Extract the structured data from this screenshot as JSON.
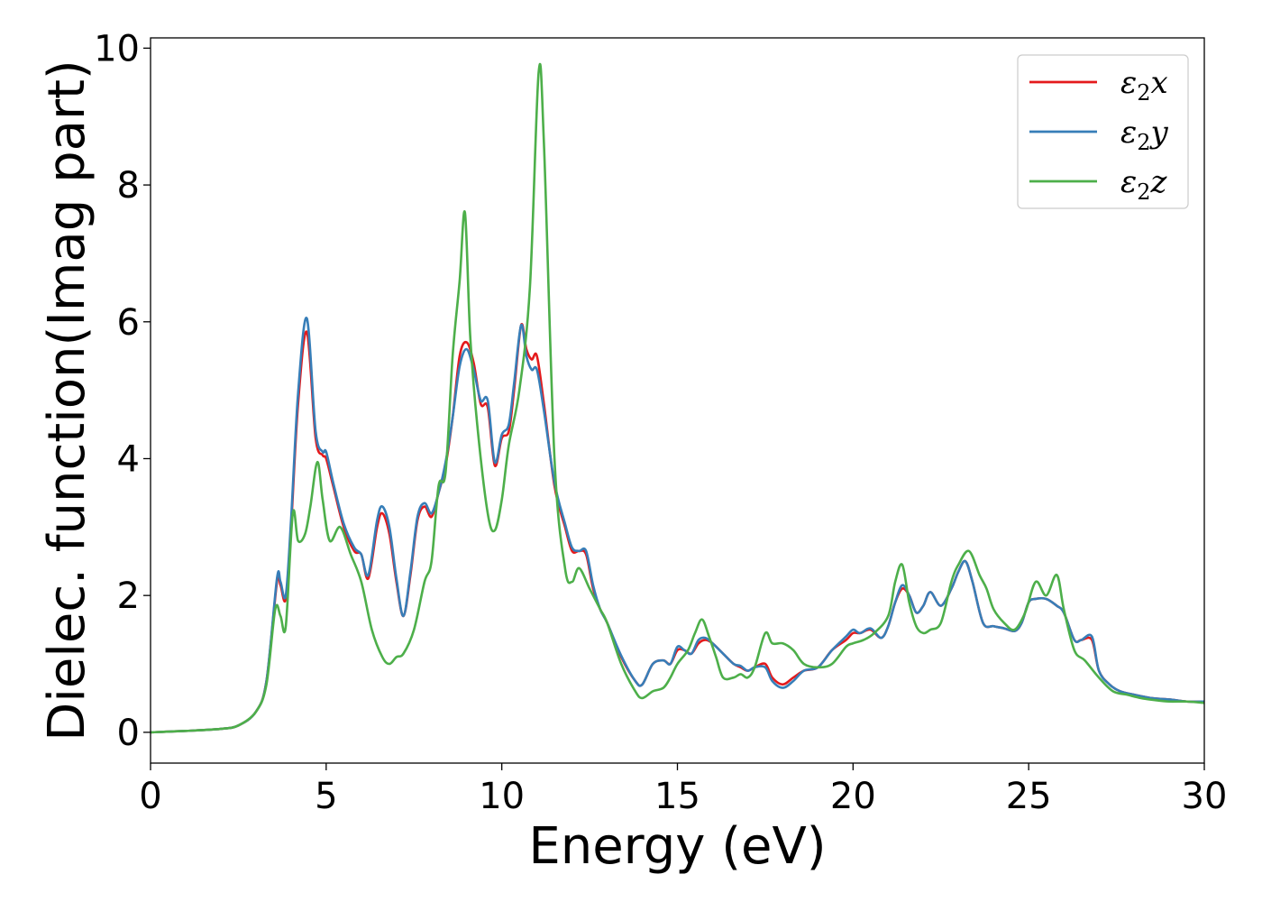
{
  "chart_data": {
    "type": "line",
    "title": "",
    "xlabel": "Energy (eV)",
    "ylabel": "Dielec. function(Imag part)",
    "xlim": [
      0,
      30
    ],
    "ylim": [
      -0.45,
      10.15
    ],
    "xticks": [
      "0",
      "5",
      "10",
      "15",
      "20",
      "25",
      "30"
    ],
    "yticks": [
      "0",
      "2",
      "4",
      "6",
      "8",
      "10"
    ],
    "xtick_values": [
      0,
      5,
      10,
      15,
      20,
      25,
      30
    ],
    "ytick_values": [
      0,
      2,
      4,
      6,
      8,
      10
    ],
    "grid": false,
    "legend_position": "top-right",
    "series": [
      {
        "name": "ε2x",
        "legend_base": "ε",
        "legend_sub": "2",
        "legend_suffix": "x",
        "color": "#e41a1c",
        "x": [
          0,
          1,
          2,
          2.5,
          3,
          3.3,
          3.6,
          3.7,
          3.85,
          4.0,
          4.2,
          4.45,
          4.7,
          4.9,
          5.0,
          5.2,
          5.5,
          5.8,
          6.0,
          6.2,
          6.45,
          6.6,
          6.8,
          7.0,
          7.2,
          7.4,
          7.6,
          7.8,
          8.0,
          8.2,
          8.4,
          8.6,
          8.8,
          9.0,
          9.2,
          9.4,
          9.6,
          9.8,
          10.0,
          10.2,
          10.35,
          10.55,
          10.7,
          10.85,
          11.0,
          11.2,
          11.5,
          11.8,
          12.0,
          12.2,
          12.4,
          12.6,
          12.8,
          13.0,
          13.4,
          13.8,
          14.0,
          14.3,
          14.6,
          14.8,
          15.0,
          15.2,
          15.4,
          15.6,
          15.8,
          16.0,
          16.3,
          16.6,
          16.8,
          17.0,
          17.2,
          17.5,
          17.7,
          18.0,
          18.3,
          18.6,
          19.0,
          19.4,
          19.8,
          20.0,
          20.2,
          20.5,
          20.8,
          21.0,
          21.2,
          21.4,
          21.6,
          21.8,
          22.0,
          22.2,
          22.5,
          22.8,
          23.0,
          23.2,
          23.4,
          23.7,
          24.0,
          24.3,
          24.6,
          24.8,
          25.0,
          25.2,
          25.5,
          25.8,
          26.0,
          26.3,
          26.5,
          26.8,
          27.0,
          27.3,
          27.6,
          28.0,
          28.5,
          29.0,
          29.5,
          30.0
        ],
        "values": [
          0.0,
          0.02,
          0.05,
          0.1,
          0.3,
          0.75,
          2.2,
          2.15,
          1.95,
          3.0,
          4.8,
          5.85,
          4.3,
          4.05,
          4.0,
          3.6,
          3.0,
          2.65,
          2.6,
          2.25,
          3.0,
          3.2,
          2.9,
          2.2,
          1.7,
          2.3,
          3.1,
          3.3,
          3.15,
          3.5,
          3.9,
          4.6,
          5.5,
          5.7,
          5.4,
          4.8,
          4.75,
          3.9,
          4.3,
          4.4,
          5.0,
          5.95,
          5.6,
          5.45,
          5.5,
          4.8,
          3.6,
          3.0,
          2.65,
          2.65,
          2.6,
          2.1,
          1.8,
          1.6,
          1.1,
          0.75,
          0.7,
          1.0,
          1.05,
          1.0,
          1.2,
          1.2,
          1.15,
          1.3,
          1.35,
          1.3,
          1.15,
          1.0,
          0.95,
          0.9,
          0.95,
          1.0,
          0.8,
          0.7,
          0.8,
          0.9,
          0.95,
          1.2,
          1.35,
          1.45,
          1.45,
          1.5,
          1.38,
          1.55,
          1.9,
          2.1,
          2.0,
          1.75,
          1.85,
          2.05,
          1.85,
          2.1,
          2.35,
          2.5,
          2.2,
          1.6,
          1.55,
          1.52,
          1.48,
          1.6,
          1.9,
          1.95,
          1.95,
          1.85,
          1.75,
          1.35,
          1.35,
          1.35,
          0.9,
          0.7,
          0.6,
          0.55,
          0.5,
          0.48,
          0.45,
          0.45
        ]
      },
      {
        "name": "ε2y",
        "legend_base": "ε",
        "legend_sub": "2",
        "legend_suffix": "y",
        "color": "#377eb8",
        "x": [
          0,
          1,
          2,
          2.5,
          3,
          3.3,
          3.6,
          3.7,
          3.85,
          4.0,
          4.2,
          4.45,
          4.7,
          4.9,
          5.0,
          5.2,
          5.5,
          5.8,
          6.0,
          6.2,
          6.45,
          6.6,
          6.8,
          7.0,
          7.2,
          7.4,
          7.6,
          7.8,
          8.0,
          8.2,
          8.4,
          8.6,
          8.8,
          9.0,
          9.2,
          9.4,
          9.6,
          9.8,
          10.0,
          10.2,
          10.35,
          10.55,
          10.7,
          10.85,
          11.0,
          11.2,
          11.5,
          11.8,
          12.0,
          12.2,
          12.4,
          12.6,
          12.8,
          13.0,
          13.4,
          13.8,
          14.0,
          14.3,
          14.6,
          14.8,
          15.0,
          15.2,
          15.4,
          15.6,
          15.8,
          16.0,
          16.3,
          16.6,
          16.8,
          17.0,
          17.2,
          17.5,
          17.7,
          18.0,
          18.3,
          18.6,
          19.0,
          19.4,
          19.8,
          20.0,
          20.2,
          20.5,
          20.8,
          21.0,
          21.2,
          21.4,
          21.6,
          21.8,
          22.0,
          22.2,
          22.5,
          22.8,
          23.0,
          23.2,
          23.4,
          23.7,
          24.0,
          24.3,
          24.6,
          24.8,
          25.0,
          25.2,
          25.5,
          25.8,
          26.0,
          26.3,
          26.5,
          26.8,
          27.0,
          27.3,
          27.6,
          28.0,
          28.5,
          29.0,
          29.5,
          30.0
        ],
        "values": [
          0.0,
          0.02,
          0.05,
          0.1,
          0.3,
          0.75,
          2.25,
          2.2,
          2.0,
          3.1,
          4.95,
          6.05,
          4.4,
          4.1,
          4.1,
          3.65,
          3.05,
          2.7,
          2.6,
          2.3,
          3.1,
          3.3,
          3.0,
          2.25,
          1.7,
          2.35,
          3.15,
          3.35,
          3.2,
          3.5,
          3.95,
          4.6,
          5.35,
          5.6,
          5.3,
          4.85,
          4.85,
          3.95,
          4.35,
          4.5,
          5.1,
          5.95,
          5.5,
          5.3,
          5.3,
          4.7,
          3.65,
          3.05,
          2.7,
          2.65,
          2.65,
          2.15,
          1.8,
          1.6,
          1.12,
          0.75,
          0.7,
          1.0,
          1.05,
          1.0,
          1.25,
          1.2,
          1.15,
          1.35,
          1.38,
          1.3,
          1.15,
          1.0,
          0.97,
          0.9,
          0.95,
          0.95,
          0.75,
          0.65,
          0.75,
          0.9,
          0.95,
          1.2,
          1.4,
          1.5,
          1.45,
          1.52,
          1.38,
          1.55,
          1.9,
          2.15,
          2.0,
          1.75,
          1.85,
          2.05,
          1.85,
          2.1,
          2.35,
          2.5,
          2.2,
          1.6,
          1.55,
          1.52,
          1.48,
          1.6,
          1.9,
          1.95,
          1.95,
          1.85,
          1.75,
          1.35,
          1.35,
          1.4,
          0.9,
          0.7,
          0.6,
          0.55,
          0.5,
          0.48,
          0.45,
          0.45
        ]
      },
      {
        "name": "ε2z",
        "legend_base": "ε",
        "legend_sub": "2",
        "legend_suffix": "z",
        "color": "#4daf4a",
        "x": [
          0,
          1,
          2,
          2.5,
          3,
          3.3,
          3.55,
          3.7,
          3.85,
          4.05,
          4.2,
          4.4,
          4.55,
          4.75,
          4.9,
          5.1,
          5.4,
          5.7,
          6.0,
          6.3,
          6.6,
          6.8,
          7.0,
          7.2,
          7.5,
          7.8,
          8.0,
          8.2,
          8.4,
          8.6,
          8.8,
          8.95,
          9.1,
          9.3,
          9.6,
          9.8,
          10.0,
          10.2,
          10.5,
          10.8,
          11.05,
          11.2,
          11.5,
          11.8,
          12.0,
          12.2,
          12.5,
          12.8,
          13.0,
          13.4,
          13.8,
          14.0,
          14.3,
          14.6,
          14.8,
          15.0,
          15.3,
          15.5,
          15.7,
          15.9,
          16.1,
          16.3,
          16.6,
          16.8,
          17.0,
          17.2,
          17.5,
          17.7,
          18.0,
          18.3,
          18.6,
          19.0,
          19.4,
          19.8,
          20.0,
          20.3,
          20.6,
          21.0,
          21.2,
          21.4,
          21.6,
          21.8,
          22.0,
          22.2,
          22.5,
          22.8,
          23.0,
          23.3,
          23.6,
          23.8,
          24.0,
          24.3,
          24.6,
          24.9,
          25.2,
          25.5,
          25.8,
          26.0,
          26.3,
          26.6,
          27.0,
          27.4,
          27.8,
          28.2,
          28.6,
          29.0,
          29.5,
          30.0
        ],
        "values": [
          0.0,
          0.02,
          0.05,
          0.1,
          0.3,
          0.7,
          1.8,
          1.7,
          1.55,
          3.2,
          2.8,
          2.9,
          3.3,
          3.95,
          3.4,
          2.8,
          3.0,
          2.6,
          2.2,
          1.5,
          1.1,
          1.0,
          1.1,
          1.15,
          1.5,
          2.2,
          2.5,
          3.6,
          3.8,
          5.5,
          6.6,
          7.6,
          5.8,
          4.5,
          3.2,
          2.95,
          3.4,
          4.2,
          5.0,
          6.5,
          9.65,
          8.6,
          4.0,
          2.4,
          2.2,
          2.4,
          2.1,
          1.8,
          1.6,
          1.0,
          0.6,
          0.5,
          0.6,
          0.65,
          0.8,
          1.0,
          1.2,
          1.45,
          1.65,
          1.4,
          1.1,
          0.8,
          0.8,
          0.85,
          0.8,
          0.95,
          1.45,
          1.3,
          1.3,
          1.2,
          1.0,
          0.95,
          1.0,
          1.25,
          1.3,
          1.35,
          1.45,
          1.7,
          2.2,
          2.45,
          1.9,
          1.55,
          1.45,
          1.5,
          1.6,
          2.2,
          2.45,
          2.65,
          2.3,
          2.1,
          1.8,
          1.6,
          1.5,
          1.75,
          2.2,
          2.0,
          2.3,
          1.8,
          1.2,
          1.05,
          0.8,
          0.6,
          0.55,
          0.5,
          0.47,
          0.45,
          0.45,
          0.43
        ]
      }
    ]
  }
}
